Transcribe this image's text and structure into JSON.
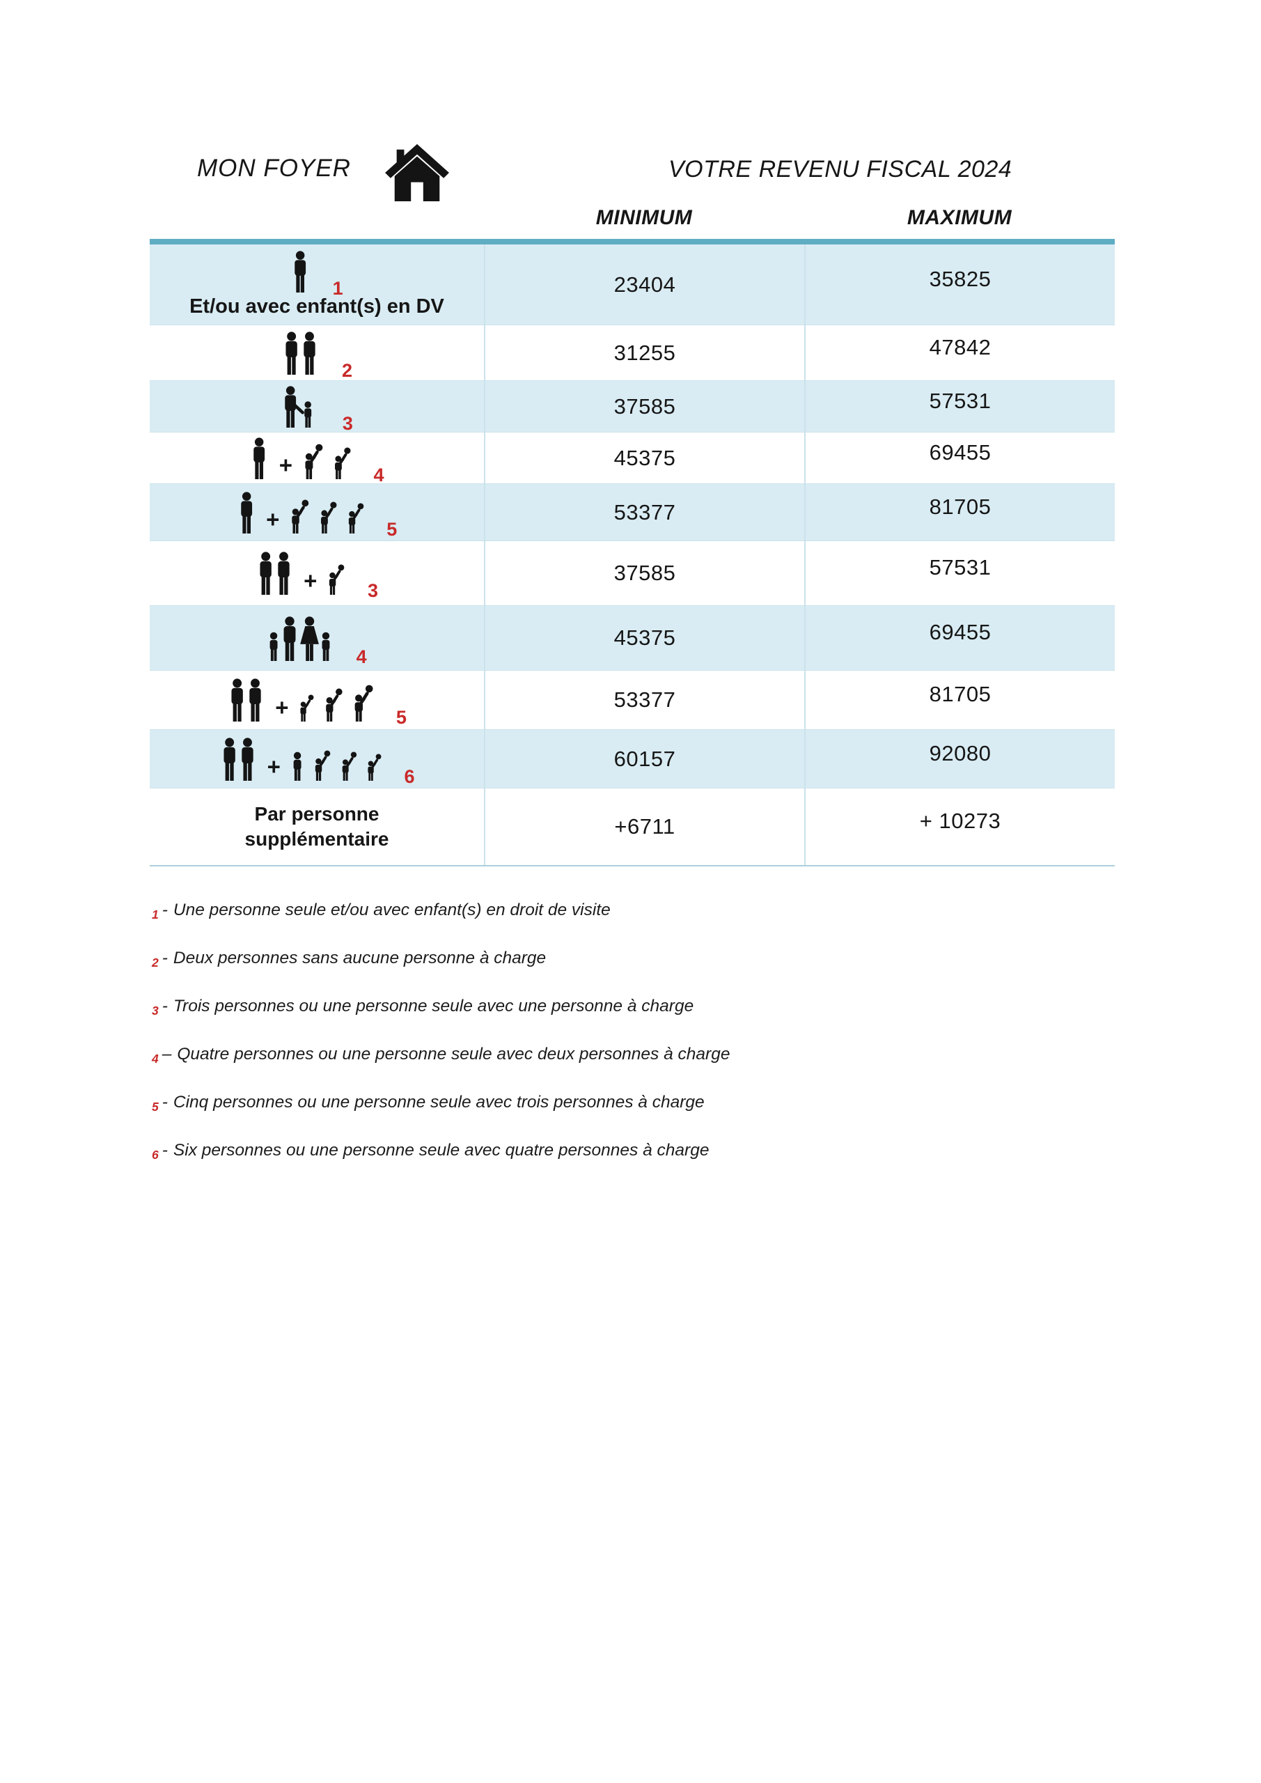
{
  "header": {
    "left_title": "MON FOYER",
    "right_title": "VOTRE REVENU FISCAL 2024"
  },
  "columns": {
    "min_label": "MINIMUM",
    "max_label": "MAXIMUM"
  },
  "colors": {
    "accent_teal": "#5fadc3",
    "row_shade_blue": "#d9ecf3",
    "grid_line": "#cbe2ec",
    "badge_red": "#c92a2a",
    "text": "#161616"
  },
  "table": {
    "rows": [
      {
        "icon": [
          {
            "t": "adult"
          }
        ],
        "badge": "1",
        "caption": "Et/ou avec enfant(s) en DV",
        "label": "",
        "min": "23404",
        "max": "35825",
        "shaded": true,
        "height": 116
      },
      {
        "icon": [
          {
            "t": "couple"
          }
        ],
        "badge": "2",
        "caption": "",
        "label": "",
        "min": "31255",
        "max": "47842",
        "shaded": false,
        "height": 80
      },
      {
        "icon": [
          {
            "t": "adult-child"
          }
        ],
        "badge": "3",
        "caption": "",
        "label": "",
        "min": "37585",
        "max": "57531",
        "shaded": true,
        "height": 74
      },
      {
        "icon": [
          {
            "t": "adult"
          },
          {
            "t": "plus"
          },
          {
            "t": "bchild",
            "s": 0.95
          },
          {
            "t": "bchild",
            "s": 0.85
          }
        ],
        "badge": "4",
        "caption": "",
        "label": "",
        "min": "45375",
        "max": "69455",
        "shaded": false,
        "height": 74
      },
      {
        "icon": [
          {
            "t": "adult"
          },
          {
            "t": "plus"
          },
          {
            "t": "bchild",
            "s": 0.9
          },
          {
            "t": "bchild",
            "s": 0.85
          },
          {
            "t": "bchild",
            "s": 0.82
          }
        ],
        "badge": "5",
        "caption": "",
        "label": "",
        "min": "53377",
        "max": "81705",
        "shaded": true,
        "height": 82
      },
      {
        "icon": [
          {
            "t": "couple"
          },
          {
            "t": "plus"
          },
          {
            "t": "bchild",
            "s": 0.82
          }
        ],
        "badge": "3",
        "caption": "",
        "label": "",
        "min": "37585",
        "max": "57531",
        "shaded": false,
        "height": 93
      },
      {
        "icon": [
          {
            "t": "family4"
          }
        ],
        "badge": "4",
        "caption": "",
        "label": "",
        "min": "45375",
        "max": "69455",
        "shaded": true,
        "height": 93
      },
      {
        "icon": [
          {
            "t": "couple"
          },
          {
            "t": "plus"
          },
          {
            "t": "bchild",
            "s": 0.72
          },
          {
            "t": "bchild",
            "s": 0.88
          },
          {
            "t": "bchild",
            "s": 0.98
          }
        ],
        "badge": "5",
        "caption": "",
        "label": "",
        "min": "53377",
        "max": "81705",
        "shaded": false,
        "height": 85
      },
      {
        "icon": [
          {
            "t": "couple"
          },
          {
            "t": "plus"
          },
          {
            "t": "child",
            "s": 0.95
          },
          {
            "t": "bchild",
            "s": 0.82
          },
          {
            "t": "bchild",
            "s": 0.78
          },
          {
            "t": "bchild",
            "s": 0.72
          }
        ],
        "badge": "6",
        "caption": "",
        "label": "",
        "min": "60157",
        "max": "92080",
        "shaded": true,
        "height": 84
      },
      {
        "icon": [],
        "badge": "",
        "caption": "",
        "label": "Par personne supplémentaire",
        "min": "+6711",
        "max": "+ 10273",
        "shaded": false,
        "height": 110
      }
    ]
  },
  "footnotes": [
    {
      "num": "1",
      "sep": "-",
      "text": "Une personne seule et/ou avec enfant(s) en droit de visite"
    },
    {
      "num": "2",
      "sep": "-",
      "text": "Deux personnes sans aucune personne à charge"
    },
    {
      "num": "3",
      "sep": "-",
      "text": "Trois personnes ou une personne seule avec une personne à charge"
    },
    {
      "num": "4",
      "sep": "–",
      "text": "Quatre personnes ou une personne seule avec deux personnes à charge"
    },
    {
      "num": "5",
      "sep": "-",
      "text": "Cinq personnes ou une personne seule avec trois personnes à charge"
    },
    {
      "num": "6",
      "sep": "-",
      "text": "Six personnes ou une personne seule avec quatre personnes à charge"
    }
  ]
}
